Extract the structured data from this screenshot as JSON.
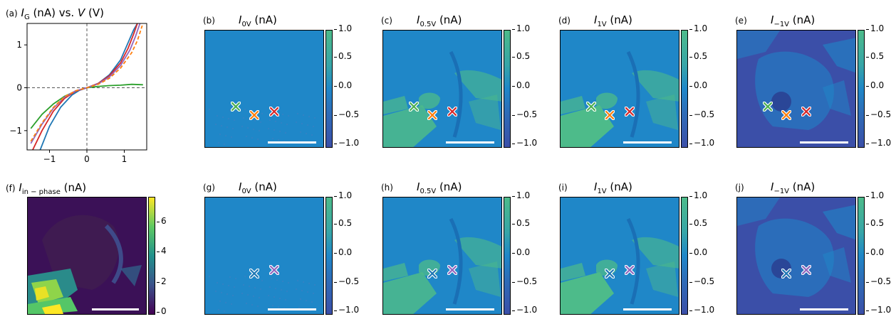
{
  "chart_data": [
    {
      "panel": "(a)",
      "type": "line",
      "title": "I_G (nA) vs. V (V)",
      "title_parts": {
        "label": "(a)",
        "sym": "I",
        "sub": "G",
        "unit": " (nA) vs. ",
        "sym2": "V",
        "unit2": " (V)"
      },
      "xlim": [
        -1.6,
        1.6
      ],
      "ylim": [
        -1.45,
        1.5
      ],
      "xticks": [
        -1,
        0,
        1
      ],
      "yticks": [
        -1,
        0,
        1
      ],
      "xtick_labels": [
        "−1",
        "0",
        "1"
      ],
      "ytick_labels": [
        "−1",
        "0",
        "1"
      ],
      "reference_lines": {
        "x": 0,
        "y": 0
      },
      "series": [
        {
          "color": "#2ca02c",
          "style": "solid",
          "x": [
            -1.5,
            -1.2,
            -0.9,
            -0.6,
            -0.3,
            0,
            0.3,
            0.6,
            0.9,
            1.2,
            1.5
          ],
          "y": [
            -0.95,
            -0.62,
            -0.38,
            -0.2,
            -0.08,
            0,
            0.03,
            0.05,
            0.06,
            0.08,
            0.07
          ]
        },
        {
          "color": "#1f77b4",
          "style": "solid",
          "x": [
            -1.25,
            -1.0,
            -0.7,
            -0.4,
            -0.2,
            0,
            0.3,
            0.6,
            0.9,
            1.1,
            1.25,
            1.35
          ],
          "y": [
            -1.45,
            -0.9,
            -0.45,
            -0.17,
            -0.06,
            0,
            0.1,
            0.3,
            0.65,
            1.05,
            1.35,
            1.5
          ]
        },
        {
          "color": "#d62728",
          "style": "solid",
          "x": [
            -1.45,
            -1.2,
            -0.9,
            -0.6,
            -0.3,
            0,
            0.3,
            0.6,
            0.9,
            1.1,
            1.25,
            1.35
          ],
          "y": [
            -1.45,
            -1.0,
            -0.55,
            -0.25,
            -0.08,
            0,
            0.1,
            0.28,
            0.58,
            0.92,
            1.25,
            1.5
          ]
        },
        {
          "color": "#9467bd",
          "style": "solid",
          "x": [
            -1.5,
            -1.2,
            -0.9,
            -0.6,
            -0.3,
            0,
            0.3,
            0.6,
            0.9,
            1.15,
            1.3,
            1.42
          ],
          "y": [
            -1.3,
            -0.85,
            -0.48,
            -0.22,
            -0.07,
            0,
            0.09,
            0.25,
            0.52,
            0.88,
            1.2,
            1.5
          ]
        },
        {
          "color": "#ff7f0e",
          "style": "dashed",
          "x": [
            -1.5,
            -1.2,
            -0.9,
            -0.6,
            -0.3,
            0,
            0.3,
            0.6,
            0.9,
            1.2,
            1.35,
            1.48
          ],
          "y": [
            -1.25,
            -0.82,
            -0.46,
            -0.21,
            -0.07,
            0,
            0.08,
            0.22,
            0.46,
            0.82,
            1.1,
            1.45
          ]
        }
      ]
    }
  ],
  "panels": {
    "f": {
      "label": "(f)",
      "sym": "I",
      "sub": "in − phase",
      "unit": " (nA)",
      "cbar_ticks": [
        "6",
        "4",
        "2",
        "0"
      ]
    },
    "b": {
      "label": "(b)",
      "sym": "I",
      "sub": "0V",
      "unit": " (nA)"
    },
    "c": {
      "label": "(c)",
      "sym": "I",
      "sub": "0.5V",
      "unit": " (nA)"
    },
    "d": {
      "label": "(d)",
      "sym": "I",
      "sub": "1V",
      "unit": " (nA)"
    },
    "e": {
      "label": "(e)",
      "sym": "I",
      "sub": "−1V",
      "unit": " (nA)"
    },
    "g": {
      "label": "(g)",
      "sym": "I",
      "sub": "0V",
      "unit": " (nA)"
    },
    "h": {
      "label": "(h)",
      "sym": "I",
      "sub": "0.5V",
      "unit": " (nA)"
    },
    "i": {
      "label": "(i)",
      "sym": "I",
      "sub": "1V",
      "unit": " (nA)"
    },
    "j": {
      "label": "(j)",
      "sym": "I",
      "sub": "−1V",
      "unit": " (nA)"
    }
  },
  "current_cbar_ticks": [
    "1.0",
    "0.5",
    "0.0",
    "−0.5",
    "−1.0"
  ],
  "colors": {
    "map_base": "#1f87c8",
    "map_dark": "#3b4fa8",
    "map_bright": "#4dbb8a",
    "viridis_low": "#440154",
    "viridis_mid": "#21918c",
    "viridis_high": "#fde725",
    "marker_green": "#4caf50",
    "marker_orange": "#ff7f0e",
    "marker_red": "#d62728",
    "marker_blue": "#1f77b4",
    "marker_purple": "#9467bd"
  }
}
